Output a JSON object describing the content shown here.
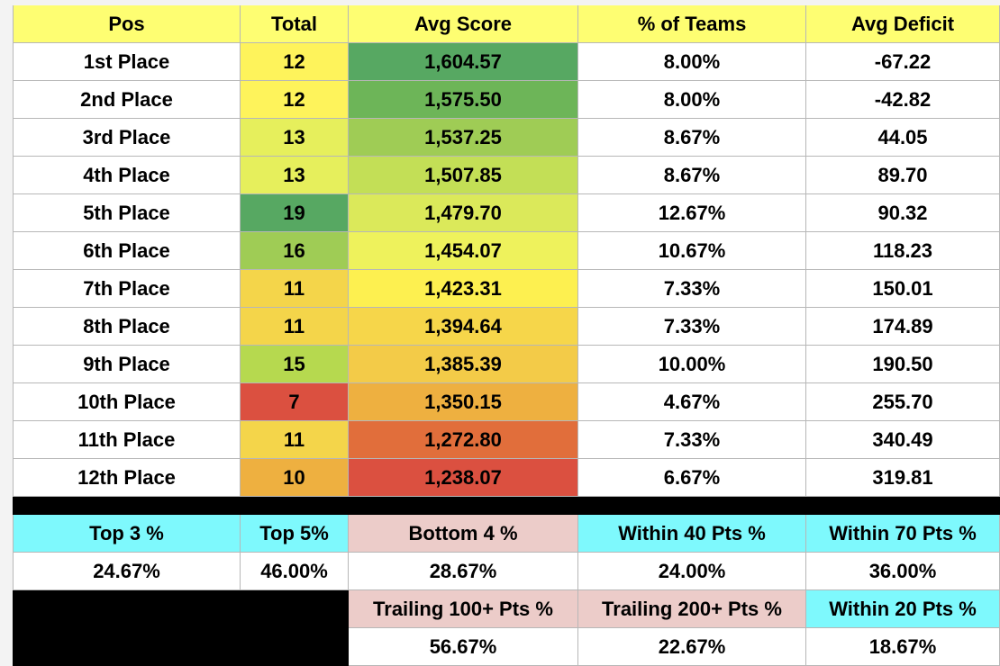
{
  "table": {
    "header": [
      "Pos",
      "Total",
      "Avg Score",
      "% of Teams",
      "Avg Deficit"
    ],
    "header_color": "#fefe72",
    "rows": [
      [
        "1st Place",
        "12",
        "1,604.57",
        "8.00%",
        "-67.22"
      ],
      [
        "2nd Place",
        "12",
        "1,575.50",
        "8.00%",
        "-42.82"
      ],
      [
        "3rd Place",
        "13",
        "1,537.25",
        "8.67%",
        "44.05"
      ],
      [
        "4th Place",
        "13",
        "1,507.85",
        "8.67%",
        "89.70"
      ],
      [
        "5th Place",
        "19",
        "1,479.70",
        "12.67%",
        "90.32"
      ],
      [
        "6th Place",
        "16",
        "1,454.07",
        "10.67%",
        "118.23"
      ],
      [
        "7th Place",
        "11",
        "1,423.31",
        "7.33%",
        "150.01"
      ],
      [
        "8th Place",
        "11",
        "1,394.64",
        "7.33%",
        "174.89"
      ],
      [
        "9th Place",
        "15",
        "1,385.39",
        "10.00%",
        "190.50"
      ],
      [
        "10th Place",
        "7",
        "1,350.15",
        "4.67%",
        "255.70"
      ],
      [
        "11th Place",
        "11",
        "1,272.80",
        "7.33%",
        "340.49"
      ],
      [
        "12th Place",
        "10",
        "1,238.07",
        "6.67%",
        "319.81"
      ]
    ],
    "total_colors": [
      "#fef35b",
      "#fef35b",
      "#e6ef5c",
      "#e6ef5c",
      "#57a862",
      "#9fcc55",
      "#f4d54a",
      "#f4d54a",
      "#b6d94f",
      "#db5040",
      "#f4d54a",
      "#eeb040"
    ],
    "score_colors": [
      "#57a862",
      "#6db558",
      "#9fcc55",
      "#c3df56",
      "#dbe95a",
      "#eef25c",
      "#fdf050",
      "#f6d64a",
      "#f3cb48",
      "#eeb040",
      "#e16e3b",
      "#db5040"
    ]
  },
  "summary": {
    "labels1": [
      "Top 3 %",
      "Top 5%",
      "Bottom 4 %",
      "Within 40 Pts %",
      "Within 70 Pts %"
    ],
    "labels1_colors": [
      "#7ef9fd",
      "#7ef9fd",
      "#ecccc9",
      "#7ef9fd",
      "#7ef9fd"
    ],
    "values1": [
      "24.67%",
      "46.00%",
      "28.67%",
      "24.00%",
      "36.00%"
    ],
    "labels2": [
      "Trailing 100+ Pts %",
      "Trailing 200+ Pts %",
      "Within 20 Pts %"
    ],
    "labels2_colors": [
      "#ecccc9",
      "#ecccc9",
      "#7ef9fd"
    ],
    "values2": [
      "56.67%",
      "22.67%",
      "18.67%"
    ]
  }
}
